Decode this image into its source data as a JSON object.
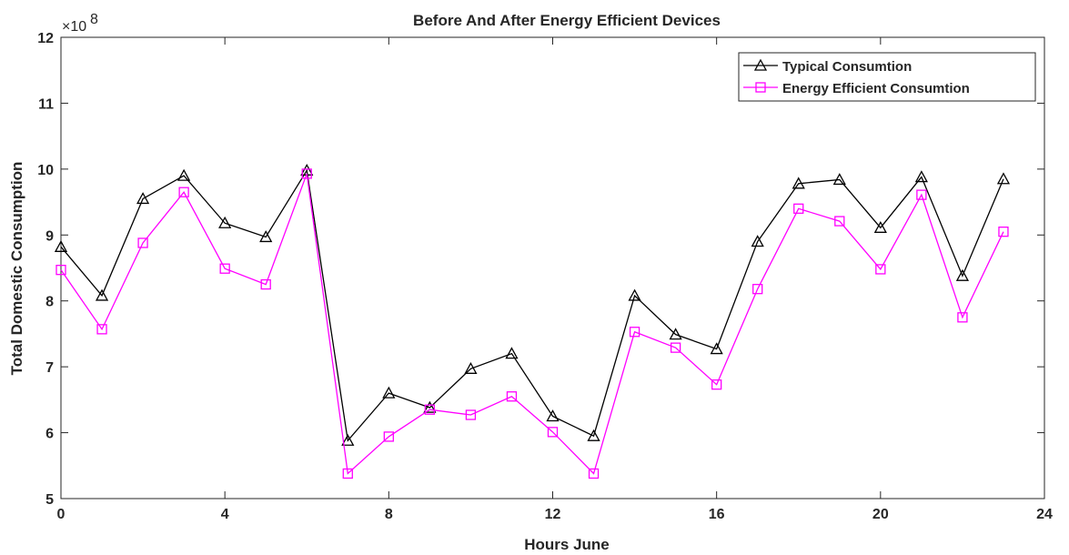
{
  "chart_data": {
    "type": "line",
    "title": "Before And After Energy Efficient Devices",
    "xlabel": "Hours June",
    "ylabel": "Total Domestic Consumption",
    "y_exponent_base": "×10",
    "y_exponent_power": "8",
    "y_scale": 100000000,
    "xlim": [
      0,
      24
    ],
    "ylim": [
      5,
      12
    ],
    "xticks": [
      0,
      4,
      8,
      12,
      16,
      20,
      24
    ],
    "yticks": [
      5,
      6,
      7,
      8,
      9,
      10,
      11,
      12
    ],
    "grid": false,
    "legend_position": "top-right",
    "x": [
      0,
      1,
      2,
      3,
      4,
      5,
      6,
      7,
      8,
      9,
      10,
      11,
      12,
      13,
      14,
      15,
      16,
      17,
      18,
      19,
      20,
      21,
      22,
      23
    ],
    "series": [
      {
        "name": "Typical Consumtion",
        "color": "#000000",
        "marker": "triangle",
        "values": [
          8.82,
          8.08,
          9.55,
          9.9,
          9.18,
          8.97,
          9.98,
          5.88,
          6.6,
          6.38,
          6.97,
          7.2,
          6.25,
          5.95,
          8.08,
          7.49,
          7.27,
          8.9,
          9.78,
          9.84,
          9.11,
          9.88,
          8.38,
          9.85
        ]
      },
      {
        "name": "Energy Efficient Consumtion",
        "color": "#ff00ff",
        "marker": "square",
        "values": [
          8.47,
          7.57,
          8.88,
          9.65,
          8.49,
          8.25,
          9.93,
          5.38,
          5.94,
          6.35,
          6.27,
          6.55,
          6.01,
          5.38,
          7.53,
          7.29,
          6.73,
          8.18,
          9.4,
          9.21,
          8.48,
          9.61,
          7.75,
          9.05
        ]
      }
    ]
  }
}
